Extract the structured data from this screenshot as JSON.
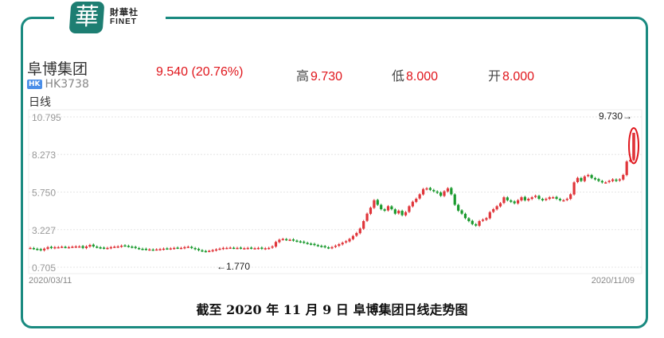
{
  "logo": {
    "mark": "華",
    "cn": "財華社",
    "en": "FINET",
    "color": "#1d7e72"
  },
  "stock": {
    "name": "阜博集团",
    "market_badge": "HK",
    "code": "HK3738"
  },
  "quote": {
    "price_change": "9.540 (20.76%)",
    "high_label": "高",
    "high": "9.730",
    "low_label": "低",
    "low": "8.000",
    "open_label": "开",
    "open": "8.000"
  },
  "period_label": "日线",
  "caption": "截至 2020 年 11 月 9 日  阜博集团日线走势图",
  "colors": {
    "up": "#e0353a",
    "down": "#1a9a2e",
    "frame": "#1a8a80",
    "highlight": "#e0161c"
  },
  "chart_data": {
    "type": "candlestick",
    "title": "阜博集团日线走势图",
    "xlabel": "",
    "ylabel": "",
    "y_ticks": [
      "10.795",
      "8.273",
      "5.750",
      "3.227",
      "0.705"
    ],
    "ylim": [
      0.705,
      10.795
    ],
    "x_ticks": [
      "2020/03/11",
      "2020/11/09"
    ],
    "annotations": [
      {
        "text": "9.730→",
        "type": "period-high",
        "value": 9.73
      },
      {
        "text": "←1.770",
        "type": "period-low",
        "value": 1.77
      }
    ],
    "grid": true,
    "close_series": [
      2.0,
      1.95,
      1.9,
      1.85,
      1.95,
      2.05,
      2.0,
      2.05,
      2.05,
      2.08,
      2.05,
      2.05,
      2.08,
      2.1,
      2.1,
      2.0,
      2.1,
      2.2,
      2.1,
      2.05,
      2.0,
      1.98,
      2.0,
      2.05,
      2.08,
      2.1,
      2.15,
      2.15,
      2.1,
      2.05,
      2.0,
      1.95,
      1.92,
      1.9,
      1.9,
      1.88,
      1.9,
      1.92,
      1.95,
      1.95,
      1.97,
      2.0,
      2.0,
      2.0,
      2.05,
      2.08,
      2.0,
      1.92,
      1.85,
      1.8,
      1.77,
      1.8,
      1.85,
      1.9,
      1.95,
      2.0,
      2.0,
      2.02,
      2.0,
      2.0,
      1.98,
      1.98,
      2.0,
      1.98,
      1.98,
      2.0,
      1.95,
      1.98,
      2.0,
      2.1,
      2.4,
      2.55,
      2.6,
      2.55,
      2.55,
      2.5,
      2.45,
      2.4,
      2.35,
      2.3,
      2.25,
      2.2,
      2.15,
      2.1,
      2.05,
      2.0,
      2.05,
      2.15,
      2.25,
      2.35,
      2.45,
      2.6,
      2.8,
      3.0,
      3.3,
      3.8,
      4.3,
      4.7,
      5.2,
      4.9,
      4.6,
      4.5,
      4.8,
      4.6,
      4.3,
      4.5,
      4.2,
      4.4,
      4.8,
      5.1,
      5.3,
      5.6,
      5.95,
      6.0,
      5.9,
      5.8,
      5.7,
      5.5,
      5.8,
      6.0,
      5.6,
      4.9,
      4.5,
      4.3,
      4.0,
      3.8,
      3.6,
      3.5,
      3.8,
      3.9,
      4.0,
      4.4,
      4.6,
      4.8,
      5.0,
      5.4,
      5.2,
      5.1,
      5.0,
      5.2,
      5.4,
      5.2,
      5.3,
      5.4,
      5.5,
      5.3,
      5.2,
      5.3,
      5.4,
      5.4,
      5.3,
      5.2,
      5.2,
      5.3,
      5.6,
      6.4,
      6.7,
      6.5,
      6.8,
      6.9,
      6.7,
      6.6,
      6.5,
      6.4,
      6.4,
      6.5,
      6.6,
      6.5,
      6.6,
      6.9,
      7.8,
      7.9,
      9.54
    ]
  }
}
